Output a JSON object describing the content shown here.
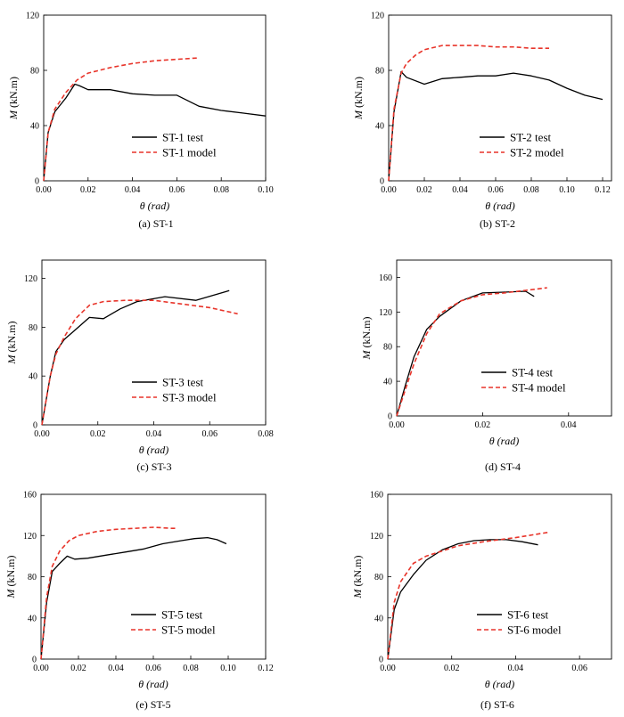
{
  "figure": {
    "line_styles": {
      "test": {
        "color": "#000000",
        "dash": "solid"
      },
      "model": {
        "color": "#e8342a",
        "dash": "dashed"
      }
    }
  },
  "chart_data": [
    {
      "type": "line",
      "caption": "(a) ST-1",
      "ylabel_symbol": "M",
      "ylabel_unit": "(kN.m)",
      "xlabel_symbol": "θ",
      "xlabel_unit": "(rad)",
      "xlim": [
        0,
        0.1
      ],
      "ylim": [
        0,
        120
      ],
      "xticks": [
        0,
        0.02,
        0.04,
        0.06,
        0.08,
        0.1
      ],
      "xtick_labels": [
        "0.00",
        "0.02",
        "0.04",
        "0.06",
        "0.08",
        "0.10"
      ],
      "yticks": [
        0,
        40,
        80,
        120
      ],
      "ytick_labels": [
        "0",
        "40",
        "80",
        "120"
      ],
      "legend_position": "lower-right",
      "series": [
        {
          "name": "ST-1 test",
          "style": "test",
          "x": [
            0,
            0.002,
            0.005,
            0.01,
            0.014,
            0.016,
            0.02,
            0.03,
            0.04,
            0.05,
            0.06,
            0.07,
            0.08,
            0.09,
            0.1
          ],
          "y": [
            0,
            35,
            50,
            60,
            70,
            69,
            66,
            66,
            63,
            62,
            62,
            54,
            51,
            49,
            47
          ]
        },
        {
          "name": "ST-1 model",
          "style": "model",
          "x": [
            0,
            0.002,
            0.005,
            0.01,
            0.015,
            0.02,
            0.03,
            0.04,
            0.05,
            0.06,
            0.07
          ],
          "y": [
            0,
            35,
            52,
            64,
            73,
            78,
            82,
            85,
            87,
            88,
            89
          ]
        }
      ]
    },
    {
      "type": "line",
      "caption": "(b) ST-2",
      "ylabel_symbol": "M",
      "ylabel_unit": "(kN.m)",
      "xlabel_symbol": "θ",
      "xlabel_unit": "(rad)",
      "xlim": [
        0,
        0.125
      ],
      "ylim": [
        0,
        120
      ],
      "xticks": [
        0,
        0.02,
        0.04,
        0.06,
        0.08,
        0.1,
        0.12
      ],
      "xtick_labels": [
        "0.00",
        "0.02",
        "0.04",
        "0.06",
        "0.08",
        "0.10",
        "0.12"
      ],
      "yticks": [
        0,
        40,
        80,
        120
      ],
      "ytick_labels": [
        "0",
        "40",
        "80",
        "120"
      ],
      "legend_position": "lower-right",
      "series": [
        {
          "name": "ST-2 test",
          "style": "test",
          "x": [
            0,
            0.003,
            0.007,
            0.01,
            0.02,
            0.03,
            0.04,
            0.05,
            0.06,
            0.07,
            0.08,
            0.09,
            0.1,
            0.11,
            0.12
          ],
          "y": [
            0,
            50,
            79,
            75,
            70,
            74,
            75,
            76,
            76,
            78,
            76,
            73,
            67,
            62,
            59
          ]
        },
        {
          "name": "ST-2 model",
          "style": "model",
          "x": [
            0,
            0.003,
            0.007,
            0.01,
            0.015,
            0.02,
            0.03,
            0.04,
            0.05,
            0.06,
            0.07,
            0.08,
            0.09
          ],
          "y": [
            0,
            52,
            78,
            85,
            91,
            95,
            98,
            98,
            98,
            97,
            97,
            96,
            96
          ]
        }
      ]
    },
    {
      "type": "line",
      "caption": "(c) ST-3",
      "ylabel_symbol": "M",
      "ylabel_unit": "(kN.m)",
      "xlabel_symbol": "θ",
      "xlabel_unit": "(rad)",
      "xlim": [
        0,
        0.08
      ],
      "ylim": [
        0,
        135
      ],
      "xticks": [
        0,
        0.02,
        0.04,
        0.06,
        0.08
      ],
      "xtick_labels": [
        "0.00",
        "0.02",
        "0.04",
        "0.06",
        "0.08"
      ],
      "yticks": [
        0,
        40,
        80,
        120
      ],
      "ytick_labels": [
        "0",
        "40",
        "80",
        "120"
      ],
      "legend_position": "lower-right",
      "series": [
        {
          "name": "ST-3 test",
          "style": "test",
          "x": [
            0,
            0.003,
            0.005,
            0.008,
            0.012,
            0.017,
            0.022,
            0.028,
            0.034,
            0.044,
            0.055,
            0.067
          ],
          "y": [
            0,
            40,
            60,
            70,
            78,
            88,
            87,
            95,
            101,
            105,
            102,
            110
          ]
        },
        {
          "name": "ST-3 model",
          "style": "model",
          "x": [
            0,
            0.003,
            0.005,
            0.008,
            0.012,
            0.017,
            0.022,
            0.03,
            0.04,
            0.05,
            0.06,
            0.07
          ],
          "y": [
            0,
            40,
            58,
            72,
            87,
            98,
            101,
            102,
            102,
            99,
            96,
            91
          ]
        }
      ]
    },
    {
      "type": "line",
      "caption": "(d) ST-4",
      "ylabel_symbol": "M",
      "ylabel_unit": "(kN.m)",
      "xlabel_symbol": "θ",
      "xlabel_unit": "(rad)",
      "xlim": [
        0,
        0.05
      ],
      "ylim": [
        0,
        180
      ],
      "xticks": [
        0,
        0.02,
        0.04
      ],
      "xtick_labels": [
        "0.00",
        "0.02",
        "0.04"
      ],
      "yticks": [
        0,
        40,
        80,
        120,
        160
      ],
      "ytick_labels": [
        "0",
        "40",
        "80",
        "120",
        "160"
      ],
      "legend_position": "lower-right",
      "series": [
        {
          "name": "ST-4 test",
          "style": "test",
          "x": [
            0,
            0.002,
            0.004,
            0.007,
            0.01,
            0.015,
            0.02,
            0.025,
            0.03,
            0.032
          ],
          "y": [
            0,
            35,
            68,
            100,
            115,
            133,
            142,
            143,
            144,
            138
          ]
        },
        {
          "name": "ST-4 model",
          "style": "model",
          "x": [
            0,
            0.002,
            0.004,
            0.007,
            0.01,
            0.015,
            0.02,
            0.025,
            0.03,
            0.035
          ],
          "y": [
            0,
            30,
            60,
            95,
            118,
            133,
            140,
            142,
            145,
            148
          ]
        }
      ]
    },
    {
      "type": "line",
      "caption": "(e) ST-5",
      "ylabel_symbol": "M",
      "ylabel_unit": "(kN.m)",
      "xlabel_symbol": "θ",
      "xlabel_unit": "(rad)",
      "xlim": [
        0,
        0.12
      ],
      "ylim": [
        0,
        160
      ],
      "xticks": [
        0,
        0.02,
        0.04,
        0.06,
        0.08,
        0.1,
        0.12
      ],
      "xtick_labels": [
        "0.00",
        "0.02",
        "0.04",
        "0.06",
        "0.08",
        "0.10",
        "0.12"
      ],
      "yticks": [
        0,
        40,
        80,
        120,
        160
      ],
      "ytick_labels": [
        "0",
        "40",
        "80",
        "120",
        "160"
      ],
      "legend_position": "lower-right",
      "series": [
        {
          "name": "ST-5 test",
          "style": "test",
          "x": [
            0,
            0.003,
            0.006,
            0.01,
            0.014,
            0.018,
            0.025,
            0.035,
            0.045,
            0.055,
            0.065,
            0.075,
            0.082,
            0.089,
            0.094,
            0.099
          ],
          "y": [
            0,
            55,
            85,
            93,
            100,
            97,
            98,
            101,
            104,
            107,
            112,
            115,
            117,
            118,
            116,
            112
          ]
        },
        {
          "name": "ST-5 model",
          "style": "model",
          "x": [
            0,
            0.003,
            0.006,
            0.01,
            0.015,
            0.02,
            0.03,
            0.04,
            0.05,
            0.06,
            0.07,
            0.073
          ],
          "y": [
            0,
            60,
            90,
            105,
            115,
            120,
            124,
            126,
            127,
            128,
            127,
            127
          ]
        }
      ]
    },
    {
      "type": "line",
      "caption": "(f) ST-6",
      "ylabel_symbol": "M",
      "ylabel_unit": "(kN.m)",
      "xlabel_symbol": "θ",
      "xlabel_unit": "(rad)",
      "xlim": [
        0,
        0.07
      ],
      "ylim": [
        0,
        160
      ],
      "xticks": [
        0,
        0.02,
        0.04,
        0.06
      ],
      "xtick_labels": [
        "0.00",
        "0.02",
        "0.04",
        "0.06"
      ],
      "yticks": [
        0,
        40,
        80,
        120,
        160
      ],
      "ytick_labels": [
        "0",
        "40",
        "80",
        "120",
        "160"
      ],
      "legend_position": "lower-right",
      "series": [
        {
          "name": "ST-6 test",
          "style": "test",
          "x": [
            0,
            0.002,
            0.004,
            0.008,
            0.012,
            0.017,
            0.022,
            0.027,
            0.032,
            0.037,
            0.042,
            0.047
          ],
          "y": [
            0,
            48,
            65,
            82,
            96,
            106,
            112,
            115,
            116,
            116,
            114,
            111
          ]
        },
        {
          "name": "ST-6 model",
          "style": "model",
          "x": [
            0,
            0.002,
            0.004,
            0.008,
            0.012,
            0.017,
            0.022,
            0.03,
            0.04,
            0.05
          ],
          "y": [
            0,
            55,
            75,
            93,
            100,
            105,
            110,
            114,
            118,
            123
          ]
        }
      ]
    }
  ]
}
